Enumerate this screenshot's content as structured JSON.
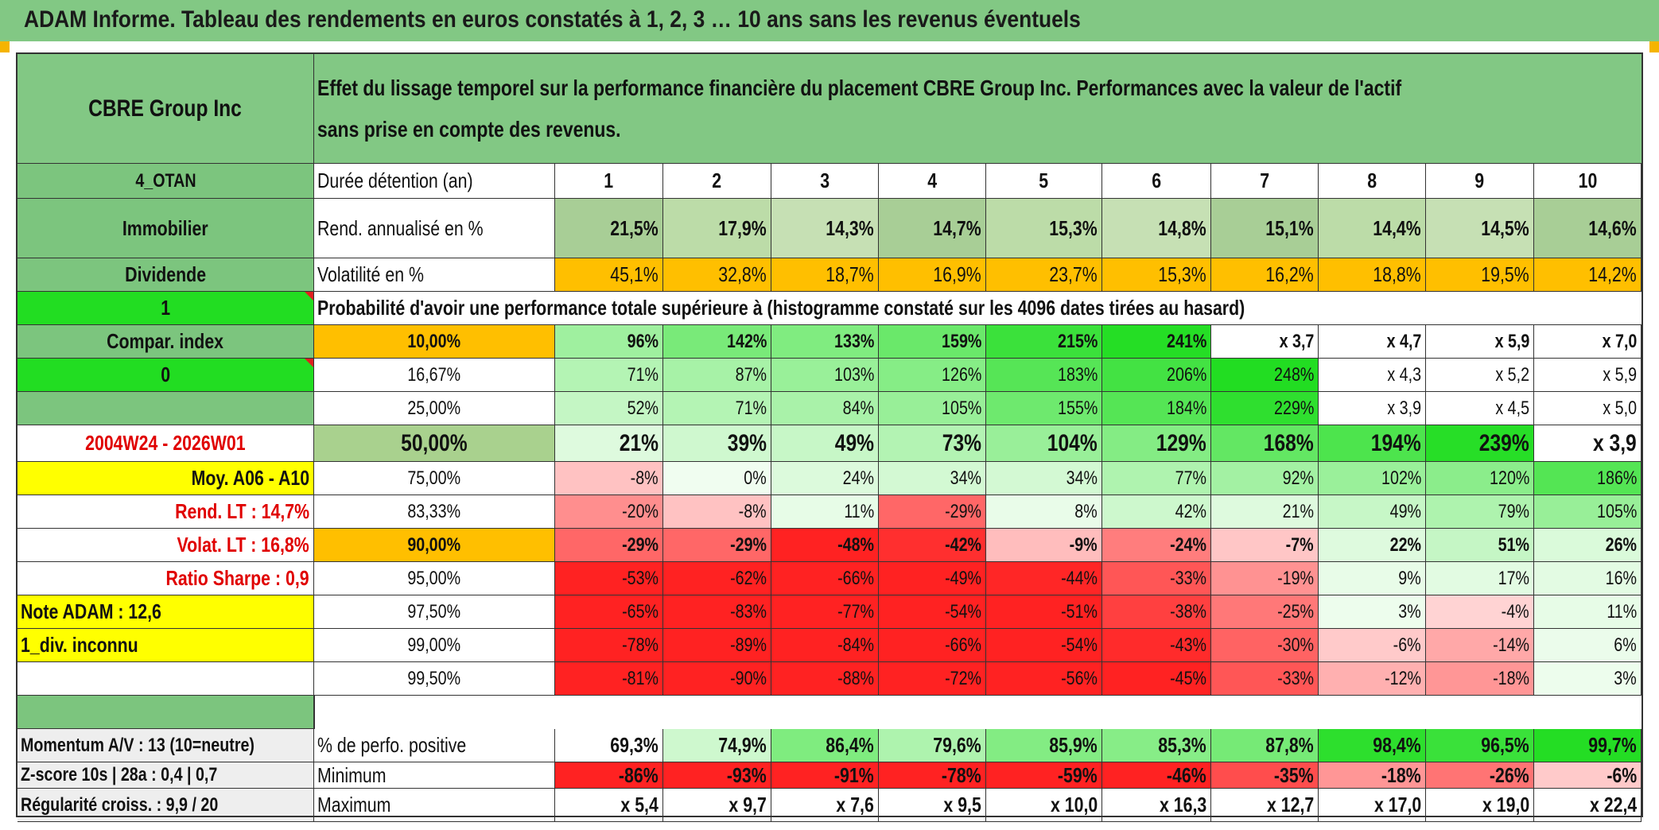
{
  "report_title": "ADAM Informe. Tableau des rendements en euros constatés à 1, 2, 3 … 10 ans sans les revenus éventuels",
  "asset_name": "CBRE Group Inc",
  "header_description": "Effet du lissage temporel sur la performance financière du placement CBRE Group Inc. Performances avec la valeur de l'actif sans prise en compte des revenus.",
  "colors": {
    "header_green": "#82c884",
    "side_green": "#7cc57e",
    "bright_green": "#22dd22",
    "orange": "#ffbf00",
    "yellow": "#ffff00",
    "gray_row": "#eeeeee",
    "red_text": "#e00000"
  },
  "left_panel": {
    "code": "4_OTAN",
    "sector": "Immobilier",
    "income_type": "Dividende",
    "toggle_value": "1",
    "compar_index_label": "Compar. index",
    "compar_index_value": "0",
    "period": "2004W24 - 2026W01",
    "average_label": "Moy. A06 - A10",
    "rend_lt": "Rend. LT :   14,7%",
    "volat_lt": "Volat. LT :   16,8%",
    "sharpe": "Ratio Sharpe :    0,9",
    "note": "Note ADAM : 12,6",
    "dividend_status": "1_div. inconnu"
  },
  "duration_label": "Durée détention (an)",
  "durations": [
    "1",
    "2",
    "3",
    "4",
    "5",
    "6",
    "7",
    "8",
    "9",
    "10"
  ],
  "rend_label": "Rend. annualisé en %",
  "rend_values": [
    "21,5%",
    "17,9%",
    "14,3%",
    "14,7%",
    "15,3%",
    "14,8%",
    "15,1%",
    "14,4%",
    "14,5%",
    "14,6%"
  ],
  "volat_label": "Volatilité en %",
  "volat_values": [
    "45,1%",
    "32,8%",
    "18,7%",
    "16,9%",
    "23,7%",
    "15,3%",
    "16,2%",
    "18,8%",
    "19,5%",
    "14,2%"
  ],
  "prob_label": "Probabilité d'avoir une performance totale supérieure à (histogramme constaté sur les 4096 dates tirées au hasard)",
  "prob_rows": [
    {
      "pct": "10,00%",
      "values": [
        "96%",
        "142%",
        "133%",
        "159%",
        "215%",
        "241%",
        "x 3,7",
        "x 4,7",
        "x 5,9",
        "x 7,0"
      ]
    },
    {
      "pct": "16,67%",
      "values": [
        "71%",
        "87%",
        "103%",
        "126%",
        "183%",
        "206%",
        "248%",
        "x 4,3",
        "x 5,2",
        "x 5,9"
      ]
    },
    {
      "pct": "25,00%",
      "values": [
        "52%",
        "71%",
        "84%",
        "105%",
        "155%",
        "184%",
        "229%",
        "x 3,9",
        "x 4,5",
        "x 5,0"
      ]
    },
    {
      "pct": "50,00%",
      "values": [
        "21%",
        "39%",
        "49%",
        "73%",
        "104%",
        "129%",
        "168%",
        "194%",
        "239%",
        "x 3,9"
      ]
    },
    {
      "pct": "75,00%",
      "values": [
        "-8%",
        "0%",
        "24%",
        "34%",
        "34%",
        "77%",
        "92%",
        "102%",
        "120%",
        "186%"
      ]
    },
    {
      "pct": "83,33%",
      "values": [
        "-20%",
        "-8%",
        "11%",
        "-29%",
        "8%",
        "42%",
        "21%",
        "49%",
        "79%",
        "105%"
      ]
    },
    {
      "pct": "90,00%",
      "values": [
        "-29%",
        "-29%",
        "-48%",
        "-42%",
        "-9%",
        "-24%",
        "-7%",
        "22%",
        "51%",
        "26%"
      ]
    },
    {
      "pct": "95,00%",
      "values": [
        "-53%",
        "-62%",
        "-66%",
        "-49%",
        "-44%",
        "-33%",
        "-19%",
        "9%",
        "17%",
        "16%"
      ]
    },
    {
      "pct": "97,50%",
      "values": [
        "-65%",
        "-83%",
        "-77%",
        "-54%",
        "-51%",
        "-38%",
        "-25%",
        "3%",
        "-4%",
        "11%"
      ]
    },
    {
      "pct": "99,00%",
      "values": [
        "-78%",
        "-89%",
        "-84%",
        "-66%",
        "-54%",
        "-43%",
        "-30%",
        "-6%",
        "-14%",
        "6%"
      ]
    },
    {
      "pct": "99,50%",
      "values": [
        "-81%",
        "-90%",
        "-88%",
        "-72%",
        "-56%",
        "-45%",
        "-33%",
        "-12%",
        "-18%",
        "3%"
      ]
    }
  ],
  "bottom_left": {
    "momentum": "Momentum A/V : 13 (10=neutre)",
    "zscore": "Z-score 10s | 28a : 0,4 | 0,7",
    "regularite": "Régularité croiss. : 9,9 / 20"
  },
  "positive_label": "% de perfo. positive",
  "positive_values": [
    "69,3%",
    "74,9%",
    "86,4%",
    "79,6%",
    "85,9%",
    "85,3%",
    "87,8%",
    "98,4%",
    "96,5%",
    "99,7%"
  ],
  "minimum_label": "Minimum",
  "minimum_values": [
    "-86%",
    "-93%",
    "-91%",
    "-78%",
    "-59%",
    "-46%",
    "-35%",
    "-18%",
    "-26%",
    "-6%"
  ],
  "maximum_label": "Maximum",
  "maximum_values": [
    "x 5,4",
    "x 9,7",
    "x 7,6",
    "x 9,5",
    "x 10,0",
    "x 16,3",
    "x 12,7",
    "x 17,0",
    "x 19,0",
    "x 22,4"
  ]
}
